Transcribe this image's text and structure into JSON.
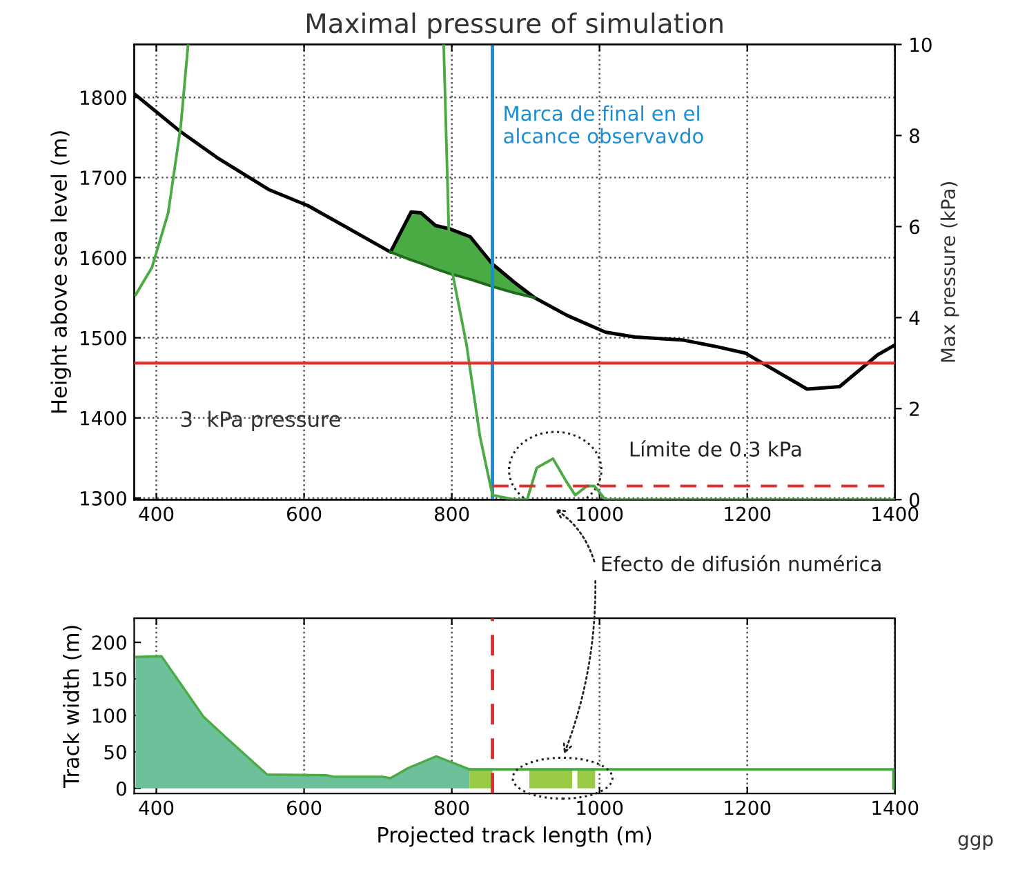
{
  "chart_data": [
    {
      "type": "line",
      "title": "Maximal pressure of simulation",
      "ylabel": "Height above sea level (m)",
      "y2label": "Max pressure (kPa)",
      "xlim": [
        370,
        1400
      ],
      "xticks": [
        400,
        600,
        800,
        1000,
        1200,
        1400
      ],
      "ylim": [
        1298,
        1866
      ],
      "yticks": [
        1300,
        1400,
        1500,
        1600,
        1700,
        1800
      ],
      "y2lim": [
        0,
        10
      ],
      "y2ticks": [
        0,
        2,
        4,
        6,
        8,
        10
      ],
      "grid": true,
      "series": [
        {
          "color": "#000000",
          "x": [
            372,
            433,
            482,
            552,
            605,
            717,
            745,
            758,
            778,
            797,
            825,
            855,
            885,
            912,
            956,
            1008,
            1048,
            1114,
            1158,
            1197,
            1281,
            1325,
            1377,
            1400
          ],
          "values": [
            1803,
            1757,
            1725,
            1685,
            1665,
            1607,
            1657,
            1656,
            1640,
            1636,
            1626,
            1592,
            1569,
            1550,
            1528,
            1507,
            1501,
            1497,
            1489,
            1481,
            1436,
            1439,
            1479,
            1491
          ]
        },
        {
          "color": "#1f6b1c",
          "x": [
            717,
            745,
            758,
            778,
            797,
            825,
            855,
            885,
            912
          ],
          "values": [
            1607,
            1597,
            1593,
            1586,
            1580,
            1573,
            1564,
            1556,
            1550
          ]
        },
        {
          "type": "area",
          "color": "#4aaa44",
          "x": [
            717,
            745,
            758,
            778,
            797,
            825,
            855,
            885,
            912
          ],
          "values": [
            1607,
            1657,
            1656,
            1640,
            1636,
            1626,
            1592,
            1569,
            1550
          ]
        },
        {
          "axis": "y2",
          "color": "#4aaa44",
          "x": [
            372,
            394,
            416,
            433,
            443,
            600,
            789,
            797,
            820,
            838,
            855,
            885,
            902,
            915,
            926,
            937,
            955,
            967,
            983,
            993,
            1008,
            1026,
            1400
          ],
          "values": [
            4.5,
            5.1,
            6.3,
            8.2,
            10,
            null,
            10,
            5.3,
            3.4,
            1.4,
            0.1,
            0,
            0,
            0.7,
            0.8,
            0.9,
            0.4,
            0.1,
            0.3,
            0.3,
            0,
            0,
            0
          ]
        },
        {
          "axis": "y2",
          "color": "#e03030",
          "line_style": "dashed",
          "x": [
            855,
            1400
          ],
          "values": [
            0.3,
            0.3
          ]
        }
      ],
      "ref_lines": [
        {
          "axis": "y2",
          "value": 3,
          "color": "#e03030"
        },
        {
          "axis": "x",
          "value": 855,
          "color": "#1a8ed4",
          "label": "Marca de final en el\nalcance observavdo"
        }
      ],
      "annotations": [
        "3  kPa pressure",
        "Límite de 0.3 kPa",
        "Efecto de difusión numérica"
      ]
    },
    {
      "type": "area",
      "xlabel": "Projected track length (m)",
      "ylabel": "Track width (m)",
      "xlim": [
        370,
        1400
      ],
      "xticks": [
        400,
        600,
        800,
        1000,
        1200,
        1400
      ],
      "ylim": [
        -7,
        233
      ],
      "yticks": [
        0,
        50,
        100,
        150,
        200
      ],
      "grid": "x",
      "series": [
        {
          "color": "#6cc09a",
          "x": [
            372,
            407,
            464,
            495,
            550,
            631,
            640,
            706,
            717,
            741,
            779,
            824
          ],
          "values": [
            180,
            181,
            98,
            69,
            19,
            18,
            16,
            16,
            14,
            28,
            44,
            26
          ]
        },
        {
          "color": "#99cc44",
          "x": [
            824,
            855
          ],
          "values": [
            26,
            26
          ]
        },
        {
          "color": "#99cc44",
          "x": [
            905,
            963
          ],
          "values": [
            26,
            26
          ]
        },
        {
          "color": "#99cc44",
          "x": [
            970,
            994
          ],
          "values": [
            26,
            26
          ]
        },
        {
          "type": "line",
          "color": "#4aaa44",
          "x": [
            824,
            1398,
            1398
          ],
          "values": [
            26,
            26,
            0
          ]
        }
      ],
      "ref_lines": [
        {
          "axis": "x",
          "value": 855,
          "color": "#e03030",
          "line_style": "dashed"
        }
      ],
      "annotations": [
        "ggp"
      ]
    }
  ]
}
